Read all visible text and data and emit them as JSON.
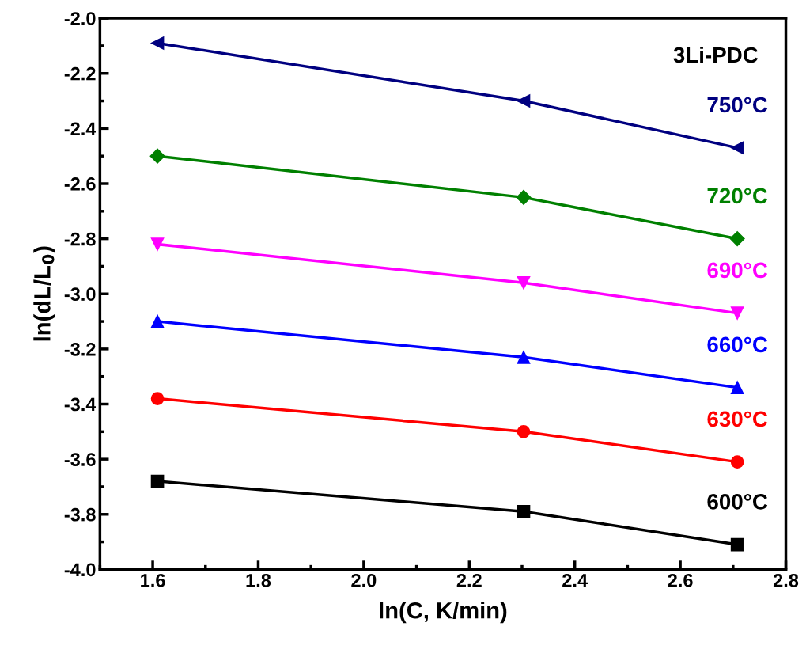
{
  "chart_data": {
    "type": "line",
    "xlabel": "ln(C, K/min)",
    "ylabel": "ln(dL/L$_{0}$)",
    "x": [
      1.609,
      2.303,
      2.708
    ],
    "series": [
      {
        "name": "750°C",
        "color": "#000080",
        "marker": "triangle_left",
        "values": [
          -2.09,
          -2.3,
          -2.47
        ]
      },
      {
        "name": "720°C",
        "color": "#008000",
        "marker": "diamond",
        "values": [
          -2.5,
          -2.65,
          -2.8
        ]
      },
      {
        "name": "690°C",
        "color": "#ff00ff",
        "marker": "triangle_down",
        "values": [
          -2.82,
          -2.96,
          -3.07
        ]
      },
      {
        "name": "660°C",
        "color": "#0000ff",
        "marker": "triangle",
        "values": [
          -3.1,
          -3.23,
          -3.34
        ]
      },
      {
        "name": "630°C",
        "color": "#ff0000",
        "marker": "circle",
        "values": [
          -3.38,
          -3.5,
          -3.61
        ]
      },
      {
        "name": "600°C",
        "color": "#000000",
        "marker": "square",
        "values": [
          -3.68,
          -3.79,
          -3.91
        ]
      }
    ],
    "annotations": [
      "3Li-PDC"
    ],
    "xlim": [
      1.5,
      2.8
    ],
    "xticks": [
      1.6,
      1.8,
      {
        "value": 2.0,
        "label": "2.0"
      },
      2.2,
      2.4,
      2.6,
      2.8
    ],
    "ylim": [
      -4.0,
      -2.0
    ],
    "yticks": [
      {
        "value": -4.0,
        "label": "-4.0"
      },
      -3.8,
      -3.6,
      -3.4,
      -3.2,
      {
        "value": -3.0,
        "label": "-3.0"
      },
      -2.8,
      -2.6,
      -2.4,
      -2.2,
      {
        "value": -2.0,
        "label": "-2.0"
      }
    ],
    "grid": false,
    "legend": false,
    "line_style": "solid"
  }
}
